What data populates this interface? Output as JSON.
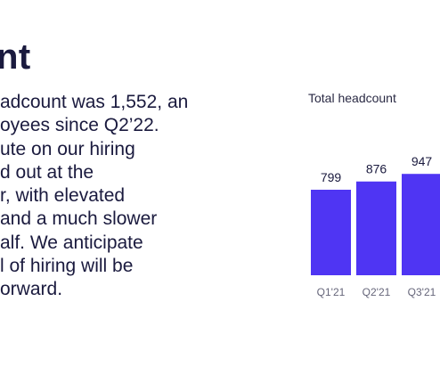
{
  "title": "nt",
  "paragraph_lines": [
    "adcount was 1,552, an",
    "oyees since Q2’22.",
    "ute on our hiring",
    "d out at the",
    "r, with elevated",
    "and a much slower",
    "alf. We anticipate",
    "l of hiring will be",
    "orward."
  ],
  "colors": {
    "bar": "#4f35f3",
    "text": "#1a1a3e",
    "axis_label": "#66667a"
  },
  "chart_data": {
    "type": "bar",
    "title": "Total headcount",
    "categories": [
      "Q1'21",
      "Q2'21",
      "Q3'21"
    ],
    "values": [
      799,
      876,
      947
    ],
    "data_labels": [
      "799",
      "876",
      "947"
    ],
    "ylim": [
      0,
      1000
    ],
    "grid": false
  }
}
